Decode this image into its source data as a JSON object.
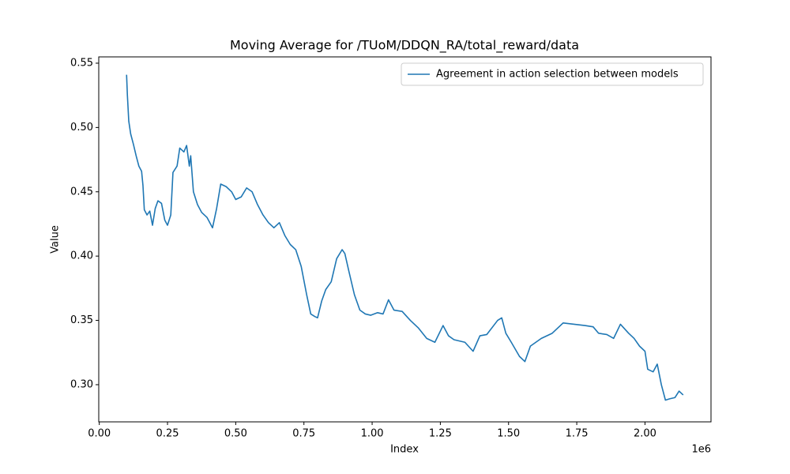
{
  "chart_data": {
    "type": "line",
    "title": "Moving Average for /TUoM/DDQN_RA/total_reward/data",
    "x_label": "Index",
    "y_label": "Value",
    "x_offset_label": "1e6",
    "legend_position": "upper right",
    "grid": false,
    "xlim": [
      -2000,
      2242000
    ],
    "ylim": [
      0.2711,
      0.5549
    ],
    "xticks": [
      {
        "value": 0,
        "label": "0.00"
      },
      {
        "value": 250000,
        "label": "0.25"
      },
      {
        "value": 500000,
        "label": "0.50"
      },
      {
        "value": 750000,
        "label": "0.75"
      },
      {
        "value": 1000000,
        "label": "1.00"
      },
      {
        "value": 1250000,
        "label": "1.25"
      },
      {
        "value": 1500000,
        "label": "1.50"
      },
      {
        "value": 1750000,
        "label": "1.75"
      },
      {
        "value": 2000000,
        "label": "2.00"
      }
    ],
    "yticks": [
      {
        "value": 0.3,
        "label": "0.30"
      },
      0.35,
      {
        "value": 0.4,
        "label": "0.40"
      },
      0.45,
      {
        "value": 0.5,
        "label": "0.50"
      },
      0.55
    ],
    "x": [
      100000,
      103000,
      108000,
      115000,
      125000,
      135000,
      145000,
      155000,
      160000,
      165000,
      175000,
      185000,
      195000,
      205000,
      215000,
      228000,
      240000,
      250000,
      262000,
      270000,
      285000,
      295000,
      310000,
      320000,
      330000,
      335000,
      345000,
      360000,
      375000,
      395000,
      415000,
      430000,
      445000,
      465000,
      485000,
      500000,
      520000,
      540000,
      560000,
      580000,
      600000,
      620000,
      640000,
      660000,
      680000,
      700000,
      720000,
      740000,
      760000,
      775000,
      790000,
      800000,
      815000,
      830000,
      850000,
      870000,
      890000,
      900000,
      915000,
      935000,
      955000,
      975000,
      995000,
      1020000,
      1040000,
      1060000,
      1080000,
      1110000,
      1140000,
      1170000,
      1200000,
      1230000,
      1260000,
      1280000,
      1300000,
      1340000,
      1370000,
      1395000,
      1420000,
      1460000,
      1475000,
      1490000,
      1510000,
      1540000,
      1560000,
      1580000,
      1620000,
      1660000,
      1700000,
      1740000,
      1780000,
      1810000,
      1830000,
      1860000,
      1885000,
      1910000,
      1940000,
      1960000,
      1980000,
      2000000,
      2010000,
      2030000,
      2045000,
      2060000,
      2075000,
      2090000,
      2110000,
      2125000,
      2140000
    ],
    "series": [
      {
        "name": "Agreement in action selection between models",
        "color": "#1f77b4",
        "values": [
          0.541,
          0.525,
          0.505,
          0.495,
          0.487,
          0.478,
          0.47,
          0.466,
          0.455,
          0.436,
          0.432,
          0.435,
          0.424,
          0.437,
          0.443,
          0.441,
          0.428,
          0.424,
          0.432,
          0.465,
          0.47,
          0.484,
          0.481,
          0.486,
          0.47,
          0.478,
          0.45,
          0.44,
          0.434,
          0.43,
          0.422,
          0.437,
          0.456,
          0.454,
          0.45,
          0.444,
          0.446,
          0.453,
          0.45,
          0.44,
          0.432,
          0.426,
          0.422,
          0.426,
          0.416,
          0.409,
          0.405,
          0.392,
          0.37,
          0.355,
          0.353,
          0.352,
          0.365,
          0.374,
          0.38,
          0.398,
          0.405,
          0.402,
          0.388,
          0.37,
          0.358,
          0.355,
          0.354,
          0.356,
          0.355,
          0.366,
          0.358,
          0.357,
          0.35,
          0.344,
          0.336,
          0.333,
          0.346,
          0.338,
          0.335,
          0.333,
          0.326,
          0.338,
          0.339,
          0.35,
          0.352,
          0.34,
          0.333,
          0.322,
          0.318,
          0.33,
          0.336,
          0.34,
          0.348,
          0.347,
          0.346,
          0.345,
          0.34,
          0.339,
          0.336,
          0.347,
          0.34,
          0.336,
          0.33,
          0.326,
          0.312,
          0.31,
          0.316,
          0.3,
          0.288,
          0.289,
          0.29,
          0.295,
          0.292
        ]
      }
    ]
  }
}
